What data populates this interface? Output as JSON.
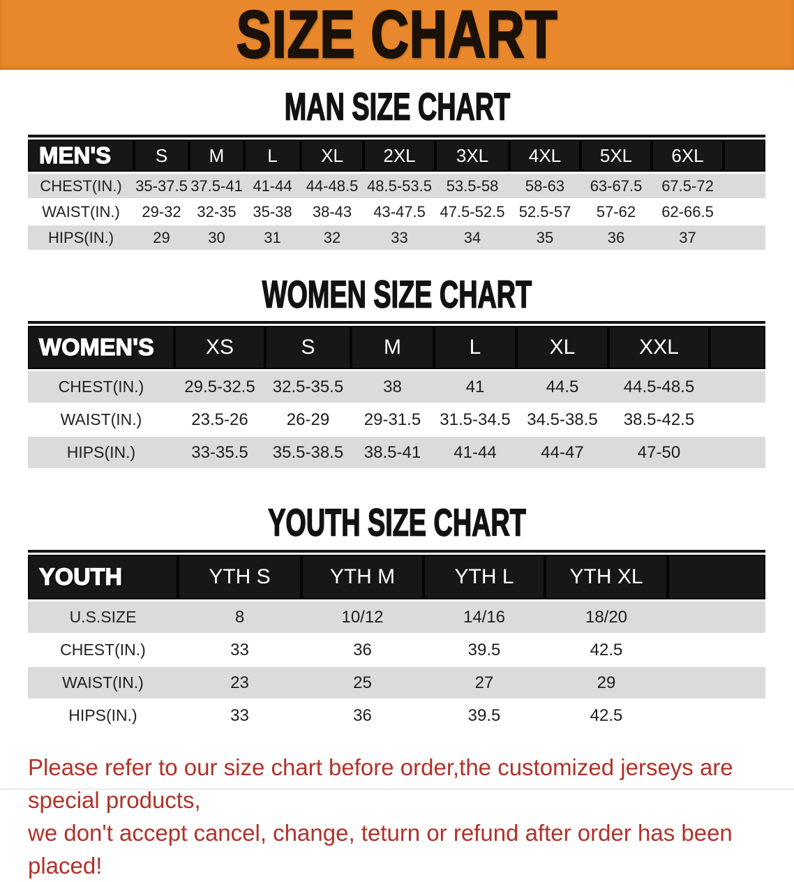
{
  "banner": {
    "title": "SIZE CHART",
    "background_color": "#E8872B",
    "text_color": "#1A1109"
  },
  "sections": [
    {
      "heading": "MAN SIZE CHART",
      "label": "MEN'S",
      "columns": [
        "S",
        "M",
        "L",
        "XL",
        "2XL",
        "3XL",
        "4XL",
        "5XL",
        "6XL"
      ],
      "rows": [
        {
          "label": "CHEST(IN.)",
          "values": [
            "35-37.5",
            "37.5-41",
            "41-44",
            "44-48.5",
            "48.5-53.5",
            "53.5-58",
            "58-63",
            "63-67.5",
            "67.5-72"
          ]
        },
        {
          "label": "WAIST(IN.)",
          "values": [
            "29-32",
            "32-35",
            "35-38",
            "38-43",
            "43-47.5",
            "47.5-52.5",
            "52.5-57",
            "57-62",
            "62-66.5"
          ]
        },
        {
          "label": "HIPS(IN.)",
          "values": [
            "29",
            "30",
            "31",
            "32",
            "33",
            "34",
            "35",
            "36",
            "37"
          ]
        }
      ]
    },
    {
      "heading": "WOMEN SIZE CHART",
      "label": "WOMEN'S",
      "columns": [
        "XS",
        "S",
        "M",
        "L",
        "XL",
        "XXL"
      ],
      "rows": [
        {
          "label": "CHEST(IN.)",
          "values": [
            "29.5-32.5",
            "32.5-35.5",
            "38",
            "41",
            "44.5",
            "44.5-48.5"
          ]
        },
        {
          "label": "WAIST(IN.)",
          "values": [
            "23.5-26",
            "26-29",
            "29-31.5",
            "31.5-34.5",
            "34.5-38.5",
            "38.5-42.5"
          ]
        },
        {
          "label": "HIPS(IN.)",
          "values": [
            "33-35.5",
            "35.5-38.5",
            "38.5-41",
            "41-44",
            "44-47",
            "47-50"
          ]
        }
      ]
    },
    {
      "heading": "YOUTH SIZE CHART",
      "label": "YOUTH",
      "columns": [
        "YTH S",
        "YTH M",
        "YTH L",
        "YTH XL"
      ],
      "rows": [
        {
          "label": "U.S.SIZE",
          "values": [
            "8",
            "10/12",
            "14/16",
            "18/20"
          ]
        },
        {
          "label": "CHEST(IN.)",
          "values": [
            "33",
            "36",
            "39.5",
            "42.5"
          ]
        },
        {
          "label": "WAIST(IN.)",
          "values": [
            "23",
            "25",
            "27",
            "29"
          ]
        },
        {
          "label": "HIPS(IN.)",
          "values": [
            "33",
            "36",
            "39.5",
            "42.5"
          ]
        }
      ]
    }
  ],
  "footer": {
    "line1": "Please refer to our size chart before order,the customized jerseys are special products,",
    "line2": "we don't accept cancel, change, teturn or refund after order has been placed!",
    "text_color": "#B23128"
  },
  "colors": {
    "banner_orange": "#E8872B",
    "header_band_black": "#171717",
    "row_shade_gray": "#DBDBDB",
    "footer_red": "#B23128"
  }
}
